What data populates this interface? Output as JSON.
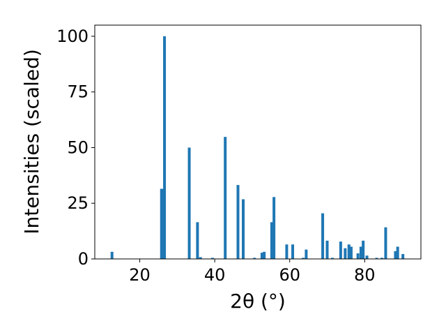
{
  "chart_data": {
    "type": "bar",
    "xlabel": "2θ (°)",
    "ylabel": "Intensities (scaled)",
    "xlim": [
      8,
      95
    ],
    "ylim": [
      0,
      105
    ],
    "xticks": [
      20,
      40,
      60,
      80
    ],
    "yticks": [
      0,
      25,
      50,
      75,
      100
    ],
    "grid": false,
    "bar_color": "#1f77b4",
    "x": [
      12.6,
      25.8,
      26.0,
      26.6,
      33.2,
      35.4,
      36.2,
      39.4,
      42.8,
      46.2,
      47.6,
      50.6,
      52.6,
      53.2,
      55.2,
      55.8,
      59.2,
      60.8,
      63.6,
      64.4,
      68.8,
      70.0,
      71.4,
      73.6,
      74.8,
      75.8,
      76.4,
      78.2,
      79.0,
      79.6,
      80.6,
      83.2,
      84.6,
      85.6,
      88.2,
      88.8,
      90.2
    ],
    "values": [
      3.2,
      31.5,
      31.5,
      100,
      50,
      16.5,
      0.8,
      0.5,
      54.8,
      33.2,
      26.8,
      0.5,
      2.8,
      3.2,
      16.5,
      27.8,
      6.5,
      6.5,
      0.5,
      4.2,
      20.5,
      8.2,
      0.5,
      7.8,
      4.8,
      6.5,
      5.5,
      2.5,
      5.5,
      8.2,
      1.5,
      0.5,
      0.5,
      14.2,
      3.5,
      5.5,
      2.2
    ]
  }
}
